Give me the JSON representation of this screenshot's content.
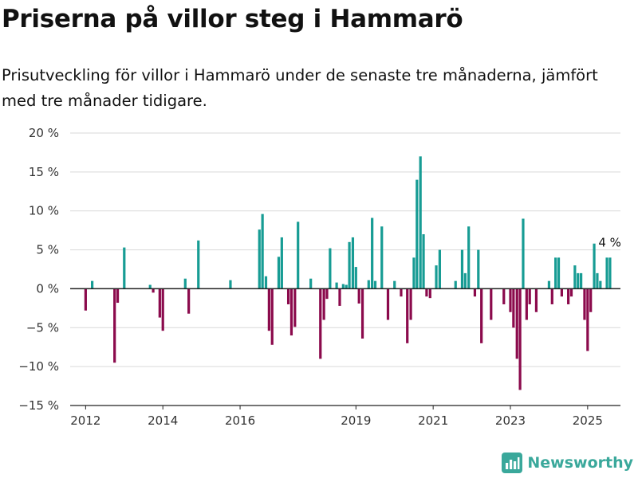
{
  "title": "Priserna på villor steg i Hammarö",
  "subtitle": "Prisutveckling för villor i Hammarö under de senaste tre månaderna, jämfört med tre månader tidigare.",
  "brand": "Newsworthy",
  "colors": {
    "positive": "#179c94",
    "negative": "#8b0a4c",
    "grid": "#d9d9d9",
    "zero": "#222222",
    "brand": "#3aa89b"
  },
  "chart_data": {
    "type": "bar",
    "ylim": [
      -15,
      20
    ],
    "yticks": [
      20,
      15,
      10,
      5,
      0,
      -5,
      -10,
      -15
    ],
    "ytick_labels": [
      "20 %",
      "15 %",
      "10 %",
      "5 %",
      "0 %",
      "−5 %",
      "−10 %",
      "−15 %"
    ],
    "xlim": [
      2011.6,
      2025.85
    ],
    "xticks": [
      2012,
      2014,
      2016,
      2019,
      2021,
      2023,
      2025
    ],
    "xtick_labels": [
      "2012",
      "2014",
      "2016",
      "2019",
      "2021",
      "2023",
      "2025"
    ],
    "grid": true,
    "annotation": {
      "text": "4 %"
    },
    "x": [
      2012.0,
      2012.17,
      2012.75,
      2012.83,
      2013.0,
      2013.67,
      2013.75,
      2013.92,
      2014.0,
      2014.58,
      2014.67,
      2014.92,
      2015.75,
      2016.5,
      2016.58,
      2016.67,
      2016.75,
      2016.83,
      2017.0,
      2017.08,
      2017.25,
      2017.33,
      2017.42,
      2017.5,
      2017.83,
      2018.08,
      2018.17,
      2018.25,
      2018.33,
      2018.5,
      2018.58,
      2018.67,
      2018.75,
      2018.83,
      2018.92,
      2019.0,
      2019.08,
      2019.17,
      2019.33,
      2019.42,
      2019.5,
      2019.67,
      2019.83,
      2020.0,
      2020.17,
      2020.33,
      2020.42,
      2020.5,
      2020.58,
      2020.67,
      2020.75,
      2020.83,
      2020.92,
      2021.08,
      2021.17,
      2021.58,
      2021.75,
      2021.83,
      2021.92,
      2022.0,
      2022.08,
      2022.17,
      2022.25,
      2022.5,
      2022.83,
      2023.0,
      2023.08,
      2023.17,
      2023.25,
      2023.33,
      2023.42,
      2023.5,
      2023.67,
      2024.0,
      2024.08,
      2024.17,
      2024.25,
      2024.33,
      2024.5,
      2024.58,
      2024.67,
      2024.75,
      2024.83,
      2024.92,
      2025.0,
      2025.08,
      2025.17,
      2025.25,
      2025.33,
      2025.5,
      2025.58
    ],
    "values": [
      -2.8,
      1.0,
      -9.5,
      -1.8,
      5.3,
      0.5,
      -0.5,
      -3.7,
      -5.4,
      1.3,
      -3.2,
      6.2,
      1.1,
      7.6,
      9.6,
      1.6,
      -5.4,
      -7.2,
      4.1,
      6.6,
      -2.0,
      -6.0,
      -4.9,
      8.6,
      1.3,
      -9.0,
      -4.0,
      -1.3,
      5.2,
      0.8,
      -2.2,
      0.6,
      0.5,
      6.0,
      6.6,
      2.8,
      -1.9,
      -6.4,
      1.1,
      9.1,
      1.0,
      8.0,
      -4.0,
      1.0,
      -1.0,
      -7.0,
      -4.0,
      4.0,
      14.0,
      17.0,
      7.0,
      -1.0,
      -1.2,
      3.0,
      5.0,
      1.0,
      5.0,
      2.0,
      8.0,
      0.0,
      -1.0,
      5.0,
      -7.0,
      -4.0,
      -2.0,
      -3.0,
      -5.0,
      -9.0,
      -13.0,
      9.0,
      -4.0,
      -2.0,
      -3.0,
      1.0,
      -2.0,
      4.0,
      4.0,
      -1.0,
      -2.0,
      -1.0,
      3.0,
      2.0,
      2.0,
      -4.0,
      -8.0,
      -3.0,
      5.8,
      2.0,
      1.0,
      4.0,
      4.0
    ]
  }
}
